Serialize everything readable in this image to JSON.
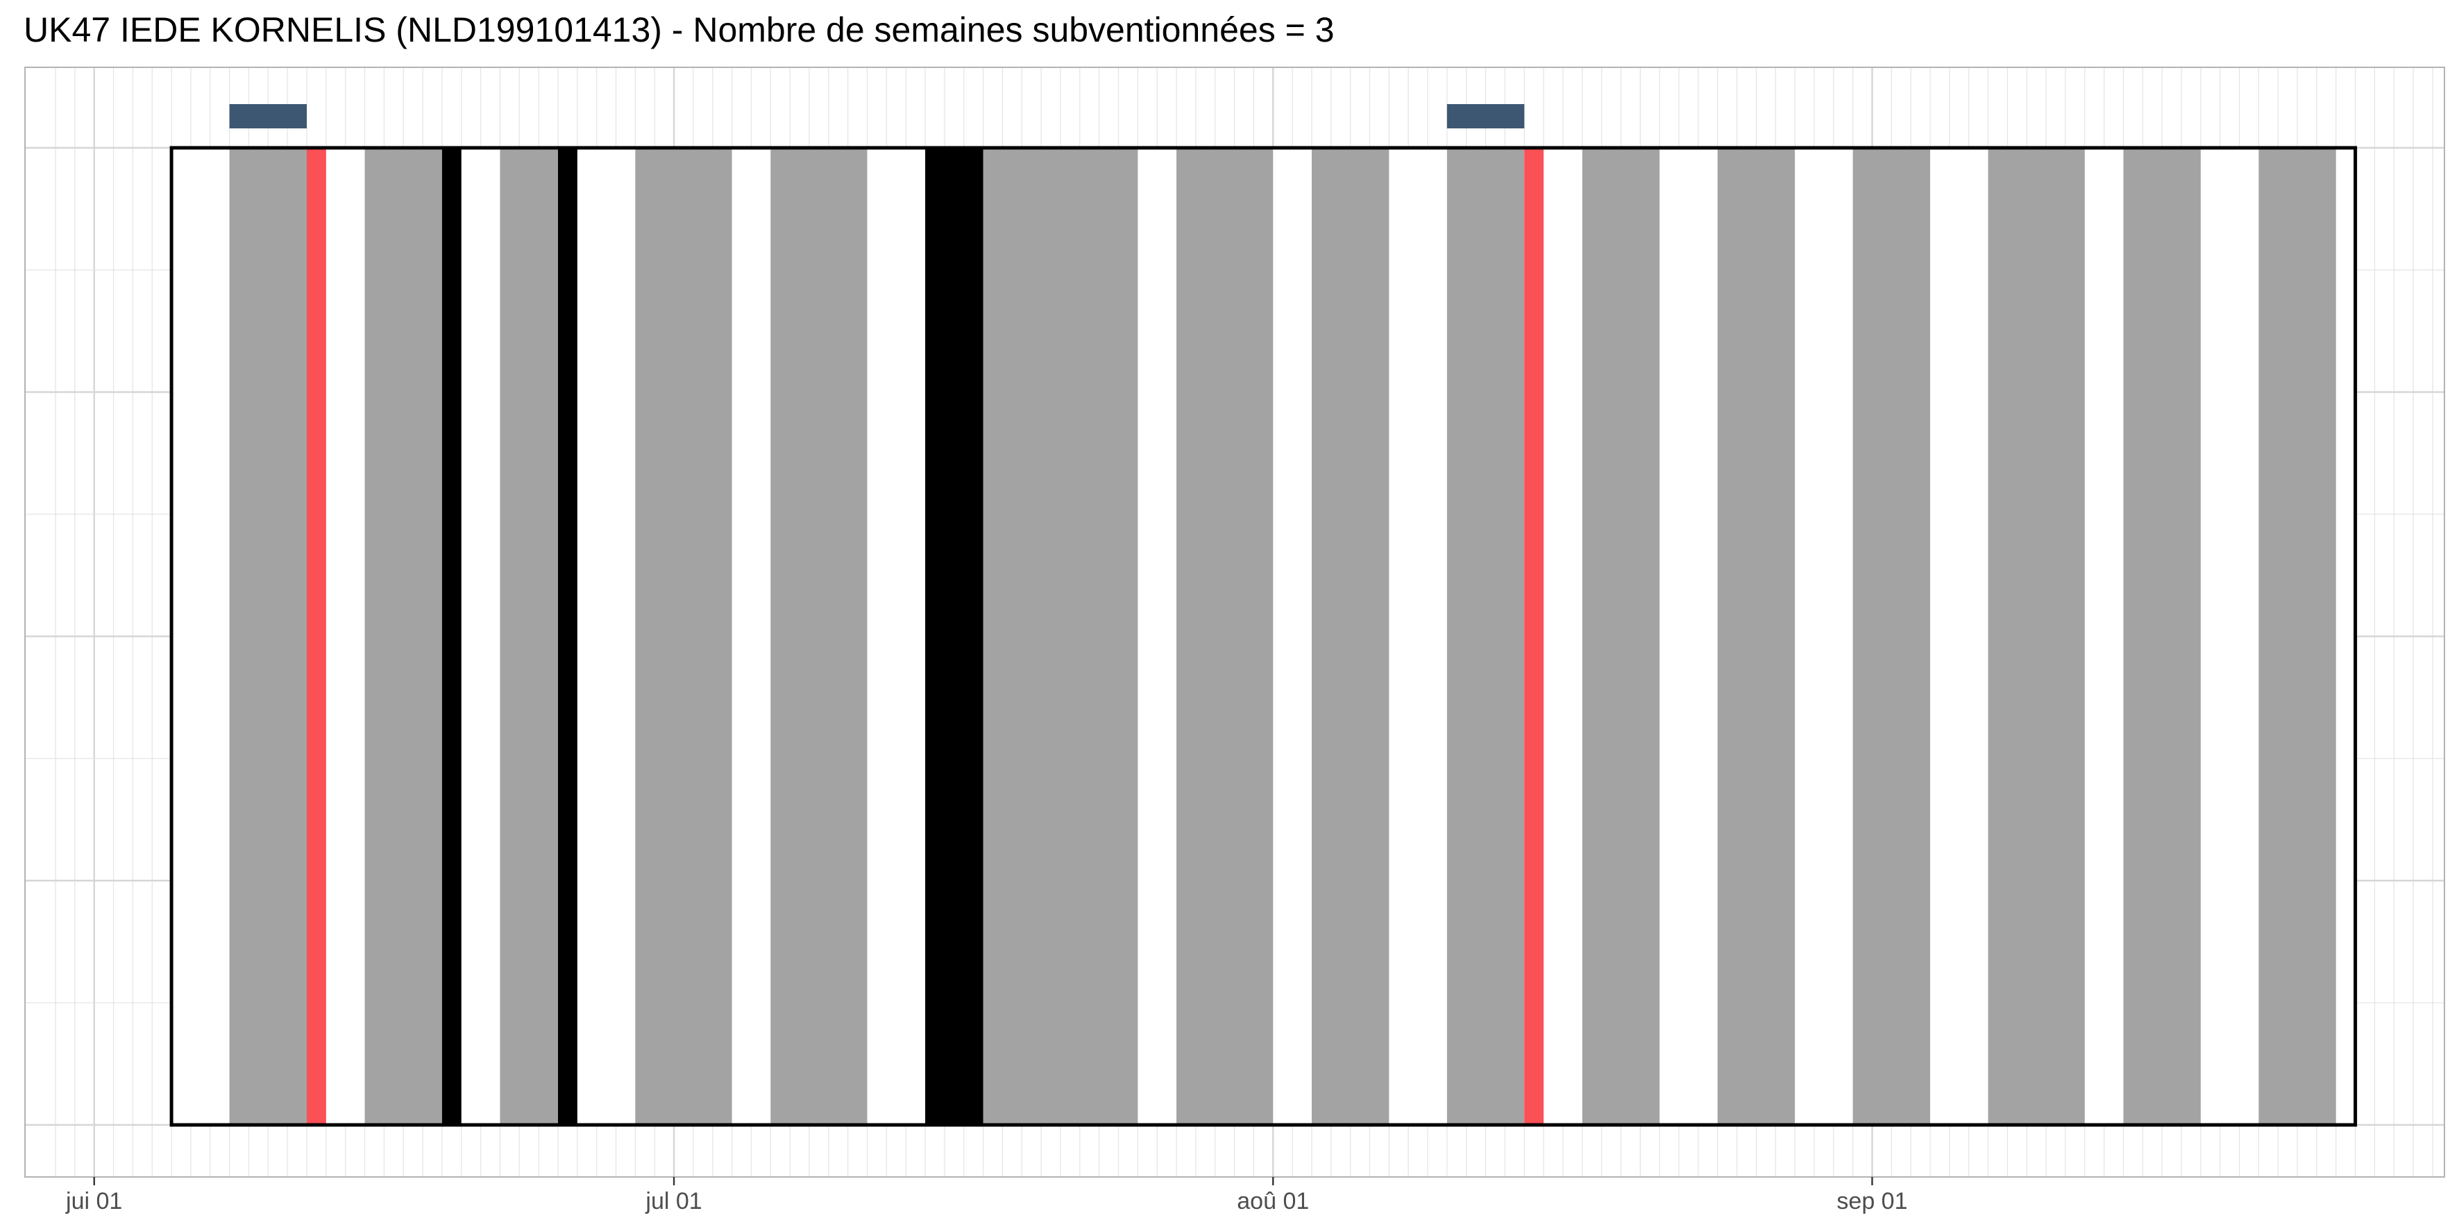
{
  "chart_data": {
    "type": "timeline",
    "title": "UK47 IEDE KORNELIS (NLD199101413) - Nombre de semaines subventionnées = 3",
    "x_unit": "date",
    "x_range": [
      "2023-05-30",
      "2023-09-30"
    ],
    "x_ticks": [
      {
        "date": "2023-06-01",
        "label": "jui 01"
      },
      {
        "date": "2023-07-01",
        "label": "jul 01"
      },
      {
        "date": "2023-08-01",
        "label": "aoû 01"
      },
      {
        "date": "2023-09-01",
        "label": "sep 01"
      }
    ],
    "frame": {
      "start": "2023-06-05",
      "end": "2023-09-26"
    },
    "gray_periods": [
      [
        "2023-06-08",
        "2023-06-12"
      ],
      [
        "2023-06-15",
        "2023-06-19"
      ],
      [
        "2023-06-22",
        "2023-06-25"
      ],
      [
        "2023-06-29",
        "2023-07-04"
      ],
      [
        "2023-07-06",
        "2023-07-11"
      ],
      [
        "2023-07-17",
        "2023-07-25"
      ],
      [
        "2023-07-27",
        "2023-08-01"
      ],
      [
        "2023-08-03",
        "2023-08-07"
      ],
      [
        "2023-08-10",
        "2023-08-14"
      ],
      [
        "2023-08-17",
        "2023-08-21"
      ],
      [
        "2023-08-24",
        "2023-08-28"
      ],
      [
        "2023-08-31",
        "2023-09-04"
      ],
      [
        "2023-09-07",
        "2023-09-12"
      ],
      [
        "2023-09-14",
        "2023-09-18"
      ],
      [
        "2023-09-21",
        "2023-09-25"
      ]
    ],
    "black_periods": [
      [
        "2023-06-19",
        "2023-06-20"
      ],
      [
        "2023-06-25",
        "2023-06-26"
      ],
      [
        "2023-07-14",
        "2023-07-17"
      ]
    ],
    "red_periods": [
      [
        "2023-06-12",
        "2023-06-13"
      ],
      [
        "2023-08-14",
        "2023-08-15"
      ]
    ],
    "top_markers": [
      [
        "2023-06-08",
        "2023-06-12"
      ],
      [
        "2023-08-10",
        "2023-08-14"
      ]
    ],
    "colors": {
      "gray": "#a3a3a3",
      "black": "#000000",
      "red": "#fa5056",
      "marker": "#3d5773",
      "grid": "#e3e3e3",
      "panel_border": "#b3b3b3"
    },
    "grid": true
  }
}
